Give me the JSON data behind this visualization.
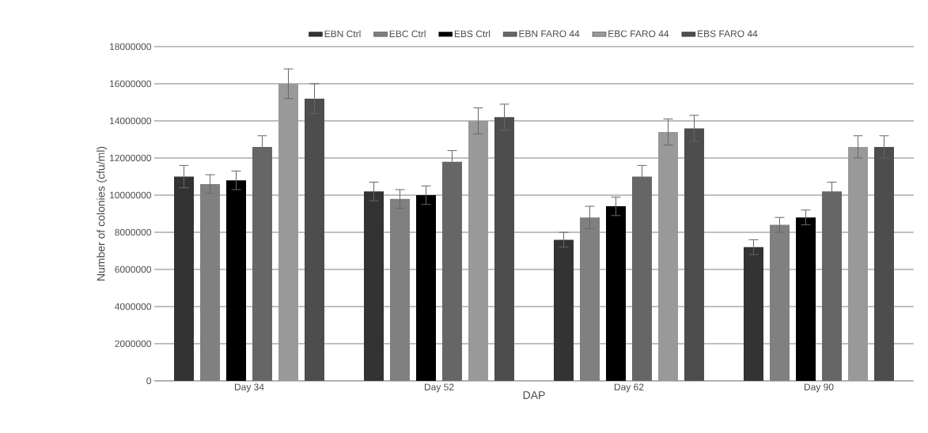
{
  "chart_data": {
    "type": "bar",
    "xlabel": "DAP",
    "ylabel": "Number of colonies (cfu/ml)",
    "categories": [
      "Day 34",
      "Day 52",
      "Day 62",
      "Day 90"
    ],
    "series": [
      {
        "name": "EBN Ctrl",
        "color": "#333333",
        "values": [
          11000000,
          10200000,
          7600000,
          7200000
        ],
        "errors": [
          600000,
          500000,
          400000,
          400000
        ]
      },
      {
        "name": "EBC Ctrl",
        "color": "#808080",
        "values": [
          10600000,
          9800000,
          8800000,
          8400000
        ],
        "errors": [
          500000,
          500000,
          600000,
          400000
        ]
      },
      {
        "name": "EBS Ctrl",
        "color": "#000000",
        "values": [
          10800000,
          10000000,
          9400000,
          8800000
        ],
        "errors": [
          500000,
          500000,
          500000,
          400000
        ]
      },
      {
        "name": "EBN FARO 44",
        "color": "#666666",
        "values": [
          12600000,
          11800000,
          11000000,
          10200000
        ],
        "errors": [
          600000,
          600000,
          600000,
          500000
        ]
      },
      {
        "name": "EBC FARO 44",
        "color": "#999999",
        "values": [
          16000000,
          14000000,
          13400000,
          12600000
        ],
        "errors": [
          800000,
          700000,
          700000,
          600000
        ]
      },
      {
        "name": "EBS FARO 44",
        "color": "#4d4d4d",
        "values": [
          15200000,
          14200000,
          13600000,
          12600000
        ],
        "errors": [
          800000,
          700000,
          700000,
          600000
        ]
      }
    ],
    "ylim": [
      0,
      18000000
    ],
    "yticks": [
      0,
      2000000,
      4000000,
      6000000,
      8000000,
      10000000,
      12000000,
      14000000,
      16000000,
      18000000
    ],
    "grid": "y",
    "legend": "top"
  }
}
